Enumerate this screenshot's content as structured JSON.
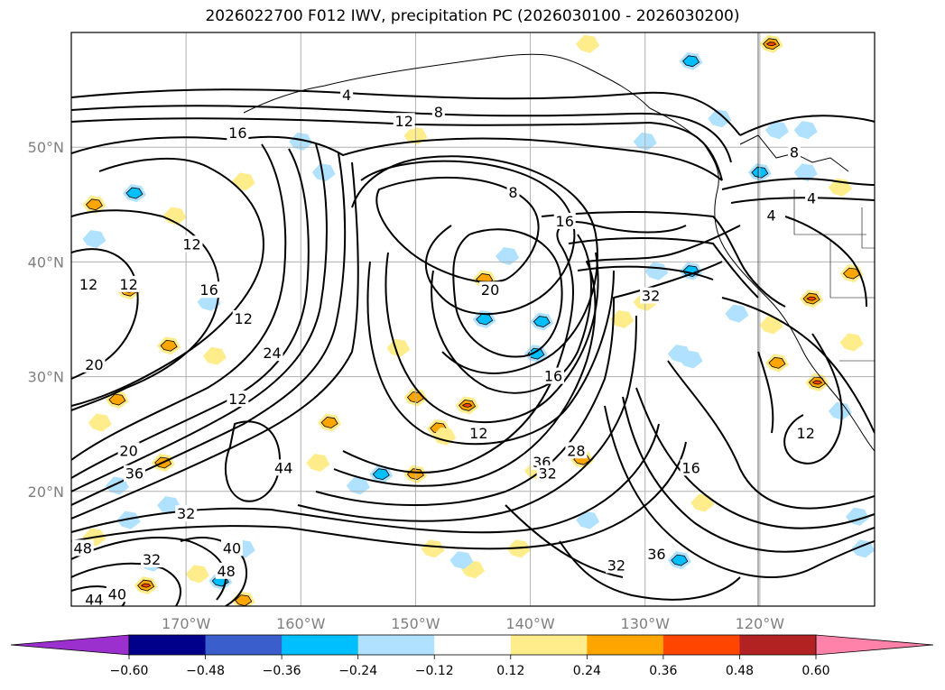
{
  "title": "2026022700 F012 IWV, precipitation PC (2026030100 - 2026030200)",
  "chart_data": {
    "type": "map",
    "projection": "lat-lon",
    "lon_range": [
      -180,
      -110
    ],
    "lat_range": [
      10,
      60
    ],
    "grid": true,
    "lat_ticks": [
      {
        "lat": 50,
        "label": "50°N"
      },
      {
        "lat": 40,
        "label": "40°N"
      },
      {
        "lat": 30,
        "label": "30°N"
      },
      {
        "lat": 20,
        "label": "20°N"
      }
    ],
    "lon_ticks": [
      {
        "lon": -170,
        "label": "170°W"
      },
      {
        "lon": -160,
        "label": "160°W"
      },
      {
        "lon": -150,
        "label": "150°W"
      },
      {
        "lon": -140,
        "label": "140°W"
      },
      {
        "lon": -130,
        "label": "130°W"
      },
      {
        "lon": -120,
        "label": "120°W"
      }
    ],
    "iwv_contour_labels": [
      {
        "text": "4",
        "lon": -156,
        "lat": 54.5
      },
      {
        "text": "8",
        "lon": -148,
        "lat": 53.0
      },
      {
        "text": "12",
        "lon": -151,
        "lat": 52.2
      },
      {
        "text": "16",
        "lon": -165.5,
        "lat": 51.2
      },
      {
        "text": "8",
        "lon": -141.5,
        "lat": 46.0
      },
      {
        "text": "16",
        "lon": -137,
        "lat": 43.5
      },
      {
        "text": "4",
        "lon": -119,
        "lat": 44.0
      },
      {
        "text": "8",
        "lon": -117,
        "lat": 49.5
      },
      {
        "text": "4",
        "lon": -115.5,
        "lat": 45.5
      },
      {
        "text": "12",
        "lon": -169.5,
        "lat": 41.5
      },
      {
        "text": "12",
        "lon": -178.5,
        "lat": 38.0
      },
      {
        "text": "12",
        "lon": -175,
        "lat": 38.0
      },
      {
        "text": "16",
        "lon": -168,
        "lat": 37.5
      },
      {
        "text": "20",
        "lon": -143.5,
        "lat": 37.5
      },
      {
        "text": "32",
        "lon": -129.5,
        "lat": 37.0
      },
      {
        "text": "12",
        "lon": -165,
        "lat": 35.0
      },
      {
        "text": "24",
        "lon": -162.5,
        "lat": 32.0
      },
      {
        "text": "20",
        "lon": -178,
        "lat": 31.0
      },
      {
        "text": "16",
        "lon": -138,
        "lat": 30.0
      },
      {
        "text": "12",
        "lon": -165.5,
        "lat": 28.0
      },
      {
        "text": "12",
        "lon": -144.5,
        "lat": 25.0
      },
      {
        "text": "20",
        "lon": -175,
        "lat": 23.5
      },
      {
        "text": "36",
        "lon": -139,
        "lat": 22.5
      },
      {
        "text": "28",
        "lon": -136,
        "lat": 23.5
      },
      {
        "text": "32",
        "lon": -138.5,
        "lat": 21.5
      },
      {
        "text": "16",
        "lon": -126,
        "lat": 22.0
      },
      {
        "text": "44",
        "lon": -161.5,
        "lat": 22.0
      },
      {
        "text": "36",
        "lon": -174.5,
        "lat": 21.5
      },
      {
        "text": "12",
        "lon": -116,
        "lat": 25.0
      },
      {
        "text": "32",
        "lon": -170,
        "lat": 18.0
      },
      {
        "text": "48",
        "lon": -179,
        "lat": 15.0
      },
      {
        "text": "40",
        "lon": -166,
        "lat": 15.0
      },
      {
        "text": "32",
        "lon": -173,
        "lat": 14.0
      },
      {
        "text": "48",
        "lon": -166.5,
        "lat": 13.0
      },
      {
        "text": "32",
        "lon": -132.5,
        "lat": 13.5
      },
      {
        "text": "36",
        "lon": -129,
        "lat": 14.5
      },
      {
        "text": "40",
        "lon": -176,
        "lat": 11.0
      },
      {
        "text": "44",
        "lon": -178,
        "lat": 10.5
      }
    ],
    "precip_levels": [
      -0.6,
      -0.48,
      -0.36,
      -0.24,
      -0.12,
      0.12,
      0.24,
      0.36,
      0.48,
      0.6
    ],
    "precip_colors": [
      "#9b30cf",
      "#00008b",
      "#3a5fcd",
      "#00bfff",
      "#b0e2ff",
      "#ffffff",
      "#ffec8b",
      "#ffa500",
      "#ff4500",
      "#b22222",
      "#ff82ab"
    ],
    "colorbar_labels": [
      "−0.60",
      "−0.48",
      "−0.36",
      "−0.24",
      "−0.12",
      "0.12",
      "0.24",
      "0.36",
      "0.48",
      "0.60"
    ],
    "precip_patches": [
      {
        "lon": -175,
        "lat": 37.5,
        "cls": 3
      },
      {
        "lon": -171.5,
        "lat": 32.7,
        "cls": 2
      },
      {
        "lon": -167.5,
        "lat": 31.8,
        "cls": 1
      },
      {
        "lon": -151.5,
        "lat": 32.5,
        "cls": 1
      },
      {
        "lon": -150,
        "lat": 28.2,
        "cls": 2
      },
      {
        "lon": -145.5,
        "lat": 27.5,
        "cls": 3
      },
      {
        "lon": -148,
        "lat": 25.5,
        "cls": 2
      },
      {
        "lon": -176,
        "lat": 28,
        "cls": 2
      },
      {
        "lon": -173.5,
        "lat": 11.8,
        "cls": 3
      },
      {
        "lon": -165,
        "lat": 10.5,
        "cls": 2
      },
      {
        "lon": -150,
        "lat": 21.5,
        "cls": 2
      },
      {
        "lon": -147.5,
        "lat": 24.8,
        "cls": 1
      },
      {
        "lon": -144,
        "lat": 38.5,
        "cls": 2
      },
      {
        "lon": -135.5,
        "lat": 22.8,
        "cls": 2
      },
      {
        "lon": -130,
        "lat": 36.5,
        "cls": 1
      },
      {
        "lon": -119,
        "lat": 34.5,
        "cls": 1
      },
      {
        "lon": -118.5,
        "lat": 31.2,
        "cls": 2
      },
      {
        "lon": -115,
        "lat": 29.5,
        "cls": 3
      },
      {
        "lon": -115.5,
        "lat": 36.8,
        "cls": 3
      },
      {
        "lon": -112,
        "lat": 39.0,
        "cls": 2
      },
      {
        "lon": -113,
        "lat": 46.5,
        "cls": 1
      },
      {
        "lon": -119,
        "lat": 59.0,
        "cls": 3
      },
      {
        "lon": -135,
        "lat": 59.0,
        "cls": 1
      },
      {
        "lon": -150,
        "lat": 51.0,
        "cls": 1
      },
      {
        "lon": -157.5,
        "lat": 26.0,
        "cls": 2
      },
      {
        "lon": -158.5,
        "lat": 22.5,
        "cls": 1
      },
      {
        "lon": -139.5,
        "lat": 21.8,
        "cls": 1
      },
      {
        "lon": -145,
        "lat": 13.2,
        "cls": 1
      },
      {
        "lon": -178,
        "lat": 16,
        "cls": 1
      },
      {
        "lon": -169,
        "lat": 12.8,
        "cls": 1
      },
      {
        "lon": -172,
        "lat": 22.5,
        "cls": 2
      },
      {
        "lon": -177.5,
        "lat": 26,
        "cls": 1
      },
      {
        "lon": -178,
        "lat": 45,
        "cls": 2
      },
      {
        "lon": -165,
        "lat": 47,
        "cls": 1
      },
      {
        "lon": -171,
        "lat": 44,
        "cls": 1
      },
      {
        "lon": -148.5,
        "lat": 15,
        "cls": 1
      },
      {
        "lon": -141,
        "lat": 15,
        "cls": 1
      },
      {
        "lon": -125,
        "lat": 19,
        "cls": 1
      },
      {
        "lon": -132,
        "lat": 35,
        "cls": 1
      },
      {
        "lon": -112,
        "lat": 33,
        "cls": 1
      }
    ],
    "precip_negative_patches": [
      {
        "lon": -174.5,
        "lat": 46,
        "cls": 2
      },
      {
        "lon": -127,
        "lat": 14,
        "cls": 2
      },
      {
        "lon": -146,
        "lat": 14,
        "cls": 1
      },
      {
        "lon": -139,
        "lat": 34.8,
        "cls": 2
      },
      {
        "lon": -139.5,
        "lat": 32,
        "cls": 2
      },
      {
        "lon": -144,
        "lat": 35,
        "cls": 2
      },
      {
        "lon": -142,
        "lat": 40.5,
        "cls": 1
      },
      {
        "lon": -160,
        "lat": 50.5,
        "cls": 1
      },
      {
        "lon": -167,
        "lat": 12.2,
        "cls": 2
      },
      {
        "lon": -165,
        "lat": 15,
        "cls": 1
      },
      {
        "lon": -171.5,
        "lat": 18.8,
        "cls": 1
      },
      {
        "lon": -155,
        "lat": 20.5,
        "cls": 1
      },
      {
        "lon": -153,
        "lat": 21.5,
        "cls": 2
      },
      {
        "lon": -173,
        "lat": 13.8,
        "cls": 1
      },
      {
        "lon": -126,
        "lat": 57.5,
        "cls": 2
      },
      {
        "lon": -120,
        "lat": 47.8,
        "cls": 2
      },
      {
        "lon": -116,
        "lat": 47.8,
        "cls": 1
      },
      {
        "lon": -123.5,
        "lat": 52.5,
        "cls": 1
      },
      {
        "lon": -118.5,
        "lat": 51.5,
        "cls": 1
      },
      {
        "lon": -116,
        "lat": 51.5,
        "cls": 1
      },
      {
        "lon": -126,
        "lat": 39.2,
        "cls": 2
      },
      {
        "lon": -129,
        "lat": 39.2,
        "cls": 1
      },
      {
        "lon": -122,
        "lat": 35.5,
        "cls": 1
      },
      {
        "lon": -178,
        "lat": 42,
        "cls": 1
      },
      {
        "lon": -168,
        "lat": 36.5,
        "cls": 1
      },
      {
        "lon": -127,
        "lat": 32,
        "cls": 1
      },
      {
        "lon": -126,
        "lat": 31.5,
        "cls": 1
      },
      {
        "lon": -113,
        "lat": 27,
        "cls": 1
      },
      {
        "lon": -111.5,
        "lat": 17.8,
        "cls": 1
      },
      {
        "lon": -158,
        "lat": 47.8,
        "cls": 1
      },
      {
        "lon": -111,
        "lat": 15,
        "cls": 1
      },
      {
        "lon": -176,
        "lat": 20.5,
        "cls": 1
      },
      {
        "lon": -175,
        "lat": 17.5,
        "cls": 1
      },
      {
        "lon": -135,
        "lat": 17.5,
        "cls": 1
      },
      {
        "lon": -130,
        "lat": 50.5,
        "cls": 1
      }
    ]
  }
}
